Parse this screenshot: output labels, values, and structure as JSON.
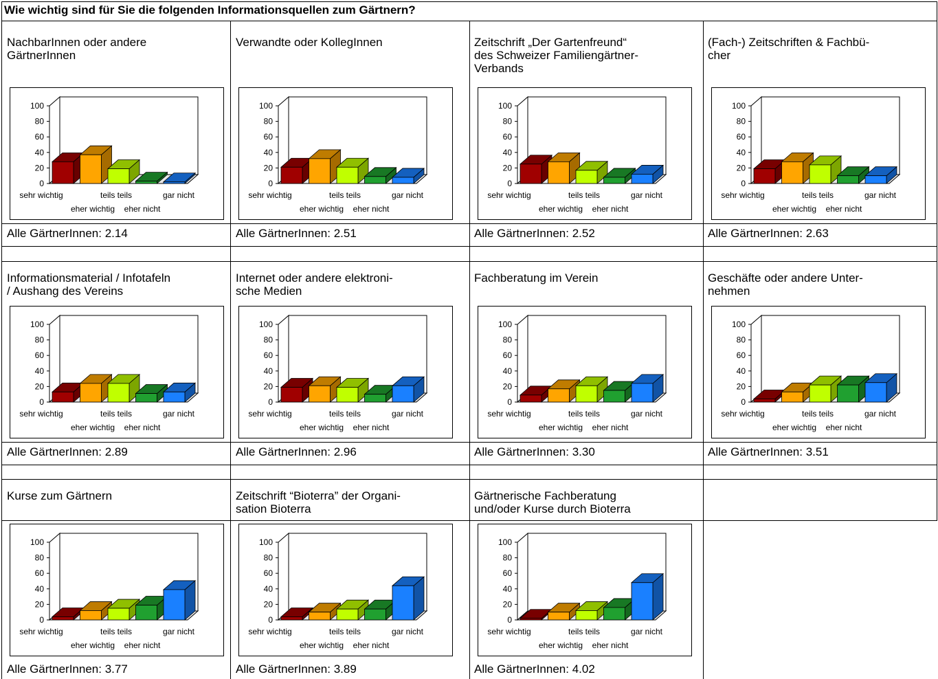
{
  "title": "Wie wichtig sind für Sie die folgenden Informationsquellen zum Gärtnern?",
  "colors": {
    "sehr_wichtig": "#a00000",
    "eher_wichtig": "#ffa500",
    "teils_teils": "#c0ff00",
    "eher_nicht": "#20a030",
    "gar_nicht": "#1a80ff"
  },
  "chart_data": [
    {
      "type": "bar",
      "panel_title": [
        "NachbarInnen oder andere",
        "GärtnerInnen"
      ],
      "footer": "Alle GärtnerInnen: 2.14",
      "categories": [
        "sehr wichtig",
        "eher wichtig",
        "teils teils",
        "eher nicht",
        "gar nicht"
      ],
      "values": [
        28,
        37,
        19,
        3,
        2
      ],
      "ylim": [
        0,
        100
      ],
      "yticks": [
        "100",
        "80",
        "60",
        "40",
        "20",
        "0"
      ]
    },
    {
      "type": "bar",
      "panel_title": [
        "Verwandte oder KollegInnen"
      ],
      "footer": "Alle GärtnerInnen: 2.51",
      "categories": [
        "sehr wichtig",
        "eher wichtig",
        "teils teils",
        "eher nicht",
        "gar nicht"
      ],
      "values": [
        21,
        32,
        21,
        9,
        8
      ],
      "ylim": [
        0,
        100
      ],
      "yticks": [
        "100",
        "80",
        "60",
        "40",
        "20",
        "0"
      ]
    },
    {
      "type": "bar",
      "panel_title": [
        "Zeitschrift „Der Gartenfreund“",
        "des Schweizer Familiengärtner-",
        "Verbands"
      ],
      "footer": "Alle GärtnerInnen: 2.52",
      "categories": [
        "sehr wichtig",
        "eher wichtig",
        "teils teils",
        "eher nicht",
        "gar nicht"
      ],
      "values": [
        25,
        28,
        17,
        8,
        12
      ],
      "ylim": [
        0,
        100
      ],
      "yticks": [
        "100",
        "80",
        "60",
        "40",
        "20",
        "0"
      ]
    },
    {
      "type": "bar",
      "panel_title": [
        "(Fach-) Zeitschriften & Fachbü-",
        "cher"
      ],
      "footer": "Alle GärtnerInnen: 2.63",
      "categories": [
        "sehr wichtig",
        "eher wichtig",
        "teils teils",
        "eher nicht",
        "gar nicht"
      ],
      "values": [
        19,
        28,
        24,
        10,
        10
      ],
      "ylim": [
        0,
        100
      ],
      "yticks": [
        "100",
        "80",
        "60",
        "40",
        "20",
        "0"
      ]
    },
    {
      "type": "bar",
      "panel_title": [
        "Informationsmaterial / Infotafeln",
        "/ Aushang des Vereins"
      ],
      "footer": "Alle GärtnerInnen: 2.89",
      "categories": [
        "sehr wichtig",
        "eher wichtig",
        "teils teils",
        "eher nicht",
        "gar nicht"
      ],
      "values": [
        13,
        24,
        24,
        11,
        13
      ],
      "ylim": [
        0,
        100
      ],
      "yticks": [
        "100",
        "80",
        "60",
        "40",
        "20",
        "0"
      ]
    },
    {
      "type": "bar",
      "panel_title": [
        "Internet oder andere elektroni-",
        "sche Medien"
      ],
      "footer": "Alle GärtnerInnen: 2.96",
      "categories": [
        "sehr wichtig",
        "eher wichtig",
        "teils teils",
        "eher nicht",
        "gar nicht"
      ],
      "values": [
        19,
        21,
        19,
        10,
        21
      ],
      "ylim": [
        0,
        100
      ],
      "yticks": [
        "100",
        "80",
        "60",
        "40",
        "20",
        "0"
      ]
    },
    {
      "type": "bar",
      "panel_title": [
        "Fachberatung im Verein"
      ],
      "footer": "Alle GärtnerInnen: 3.30",
      "categories": [
        "sehr wichtig",
        "eher wichtig",
        "teils teils",
        "eher nicht",
        "gar nicht"
      ],
      "values": [
        9,
        17,
        21,
        15,
        24
      ],
      "ylim": [
        0,
        100
      ],
      "yticks": [
        "100",
        "80",
        "60",
        "40",
        "20",
        "0"
      ]
    },
    {
      "type": "bar",
      "panel_title": [
        "Geschäfte oder andere Unter-",
        "nehmen"
      ],
      "footer": "Alle GärtnerInnen: 3.51",
      "categories": [
        "sehr wichtig",
        "eher wichtig",
        "teils teils",
        "eher nicht",
        "gar nicht"
      ],
      "values": [
        4,
        13,
        22,
        22,
        25
      ],
      "ylim": [
        0,
        100
      ],
      "yticks": [
        "100",
        "80",
        "60",
        "40",
        "20",
        "0"
      ]
    },
    {
      "type": "bar",
      "panel_title": [
        "Kurse zum Gärtnern"
      ],
      "footer": "Alle GärtnerInnen: 3.77",
      "categories": [
        "sehr wichtig",
        "eher wichtig",
        "teils teils",
        "eher nicht",
        "gar nicht"
      ],
      "values": [
        4,
        12,
        15,
        19,
        39
      ],
      "ylim": [
        0,
        100
      ],
      "yticks": [
        "100",
        "80",
        "60",
        "40",
        "20",
        "0"
      ]
    },
    {
      "type": "bar",
      "panel_title": [
        "Zeitschrift “Bioterra” der Organi-",
        "sation Bioterra"
      ],
      "footer": "Alle GärtnerInnen: 3.89",
      "categories": [
        "sehr wichtig",
        "eher wichtig",
        "teils teils",
        "eher nicht",
        "gar nicht"
      ],
      "values": [
        4,
        10,
        14,
        14,
        44
      ],
      "ylim": [
        0,
        100
      ],
      "yticks": [
        "100",
        "80",
        "60",
        "40",
        "20",
        "0"
      ]
    },
    {
      "type": "bar",
      "panel_title": [
        "Gärtnerische Fachberatung",
        "und/oder Kurse durch Bioterra"
      ],
      "footer": "Alle GärtnerInnen: 4.02",
      "categories": [
        "sehr wichtig",
        "eher wichtig",
        "teils teils",
        "eher nicht",
        "gar nicht"
      ],
      "values": [
        2,
        10,
        12,
        16,
        48
      ],
      "ylim": [
        0,
        100
      ],
      "yticks": [
        "100",
        "80",
        "60",
        "40",
        "20",
        "0"
      ]
    }
  ]
}
